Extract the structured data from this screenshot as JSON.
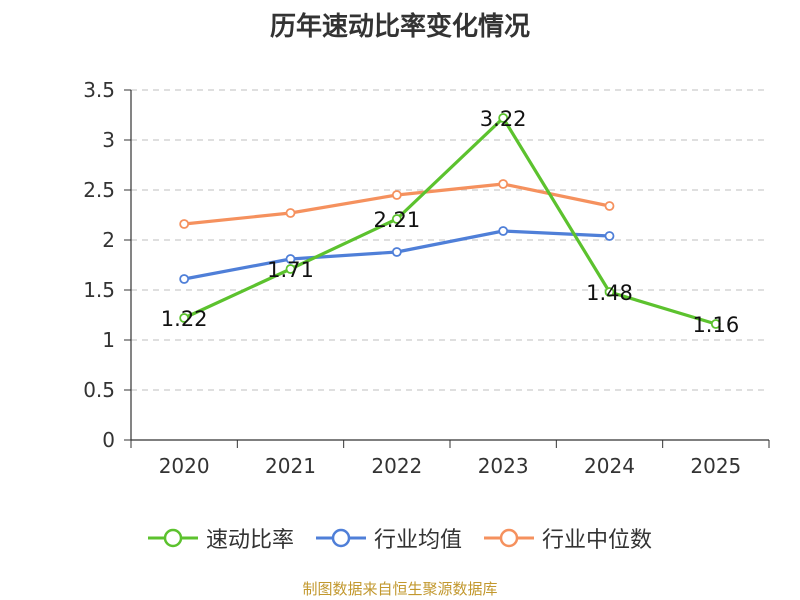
{
  "chart_data": {
    "type": "line",
    "title": "历年速动比率变化情况",
    "categories": [
      "2020",
      "2021",
      "2022",
      "2023",
      "2024",
      "2025"
    ],
    "ylim": [
      0,
      3.5
    ],
    "yticks": [
      "0",
      "0.5",
      "1",
      "1.5",
      "2",
      "2.5",
      "3",
      "3.5"
    ],
    "grid": true,
    "legend_position": "bottom",
    "series": [
      {
        "name": "速动比率",
        "color": "#5cc22e",
        "values": [
          1.22,
          1.71,
          2.21,
          3.22,
          1.48,
          1.16
        ],
        "labels": [
          "1.22",
          "1.71",
          "2.21",
          "3.22",
          "1.48",
          "1.16"
        ],
        "show_labels": true
      },
      {
        "name": "行业均值",
        "color": "#4f7fd8",
        "values": [
          1.61,
          1.81,
          1.88,
          2.09,
          2.04,
          null
        ],
        "show_labels": false
      },
      {
        "name": "行业中位数",
        "color": "#f5915e",
        "values": [
          2.16,
          2.27,
          2.45,
          2.56,
          2.34,
          null
        ],
        "show_labels": false
      }
    ]
  },
  "source_text": "制图数据来自恒生聚源数据库"
}
